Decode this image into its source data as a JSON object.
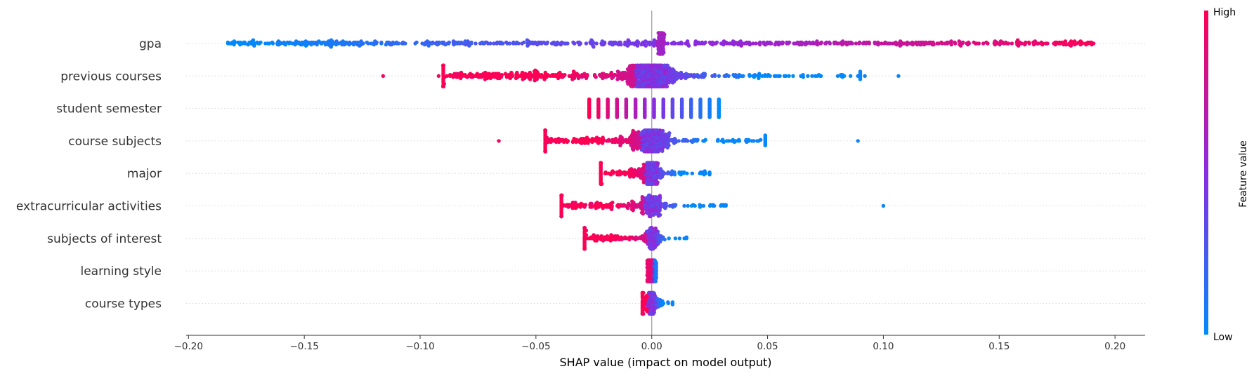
{
  "chart_data": {
    "type": "scatter",
    "subtype": "beeswarm",
    "title": "",
    "xlabel": "SHAP value (impact on model output)",
    "ylabel": "",
    "xlim": [
      -0.201,
      0.213
    ],
    "x_ticks": [
      -0.2,
      -0.15,
      -0.1,
      -0.05,
      0.0,
      0.05,
      0.1,
      0.15,
      0.2
    ],
    "x_tick_labels": [
      "−0.20",
      "−0.15",
      "−0.10",
      "−0.05",
      "0.00",
      "0.05",
      "0.10",
      "0.15",
      "0.20"
    ],
    "grid": "horizontal dotted",
    "colorbar": {
      "label": "Feature value",
      "high_label": "High",
      "low_label": "Low",
      "low_color": "#008bfb",
      "mid_color": "#8a2be2",
      "high_color": "#ff0052"
    },
    "features": [
      {
        "name": "gpa",
        "min": -0.183,
        "max": 0.193,
        "mode": "gpa",
        "bulk": 0.004,
        "tail": [],
        "n": 700
      },
      {
        "name": "previous courses",
        "min": -0.09,
        "max": 0.09,
        "mode": "continuous",
        "bulk": 0.012,
        "tail": [
          {
            "x": -0.116,
            "v": 0.98
          },
          {
            "x": -0.092,
            "v": 0.95
          },
          {
            "x": -0.084,
            "v": 0.9
          },
          {
            "x": 0.1065,
            "v": 0.03
          },
          {
            "x": 0.092,
            "v": 0.05
          },
          {
            "x": 0.089,
            "v": 0.05
          }
        ],
        "n": 1000
      },
      {
        "name": "student semester",
        "min": -0.027,
        "max": 0.029,
        "mode": "discrete",
        "columns": [
          -0.027,
          -0.023,
          -0.019,
          -0.015,
          -0.011,
          -0.007,
          -0.003,
          0.001,
          0.005,
          0.009,
          0.013,
          0.017,
          0.021,
          0.025,
          0.029
        ],
        "tail": [],
        "n": 0
      },
      {
        "name": "course subjects",
        "min": -0.046,
        "max": 0.049,
        "mode": "continuous",
        "bulk": 0.008,
        "tail": [
          {
            "x": -0.066,
            "v": 0.97
          },
          {
            "x": 0.089,
            "v": 0.03
          },
          {
            "x": 0.047,
            "v": 0.05
          },
          {
            "x": 0.044,
            "v": 0.05
          },
          {
            "x": 0.041,
            "v": 0.08
          }
        ],
        "n": 620
      },
      {
        "name": "major",
        "min": -0.022,
        "max": 0.025,
        "mode": "continuous",
        "bulk": 0.005,
        "tail": [
          {
            "x": 0.025,
            "v": 0.05
          },
          {
            "x": 0.022,
            "v": 0.06
          }
        ],
        "n": 300
      },
      {
        "name": "extracurricular activities",
        "min": -0.039,
        "max": 0.032,
        "mode": "continuous",
        "bulk": 0.006,
        "tail": [
          {
            "x": -0.039,
            "v": 0.95
          },
          {
            "x": -0.036,
            "v": 0.92
          },
          {
            "x": -0.033,
            "v": 0.9
          },
          {
            "x": -0.029,
            "v": 0.9
          },
          {
            "x": -0.026,
            "v": 0.88
          },
          {
            "x": 0.1,
            "v": 0.03
          },
          {
            "x": 0.031,
            "v": 0.05
          },
          {
            "x": 0.027,
            "v": 0.06
          }
        ],
        "n": 300
      },
      {
        "name": "subjects of interest",
        "min": -0.029,
        "max": 0.015,
        "mode": "continuous",
        "bulk": 0.004,
        "tail": [
          {
            "x": -0.029,
            "v": 0.95
          },
          {
            "x": -0.021,
            "v": 0.93
          },
          {
            "x": -0.013,
            "v": 0.9
          },
          {
            "x": 0.015,
            "v": 0.05
          },
          {
            "x": 0.012,
            "v": 0.06
          }
        ],
        "n": 220
      },
      {
        "name": "learning style",
        "min": -0.002,
        "max": 0.002,
        "mode": "narrow",
        "bulk": 0.002,
        "tail": [],
        "n": 150
      },
      {
        "name": "course types",
        "min": -0.004,
        "max": 0.009,
        "mode": "continuous",
        "bulk": 0.003,
        "tail": [
          {
            "x": 0.009,
            "v": 0.05
          },
          {
            "x": 0.007,
            "v": 0.06
          },
          {
            "x": -0.004,
            "v": 0.92
          }
        ],
        "n": 160
      }
    ]
  }
}
